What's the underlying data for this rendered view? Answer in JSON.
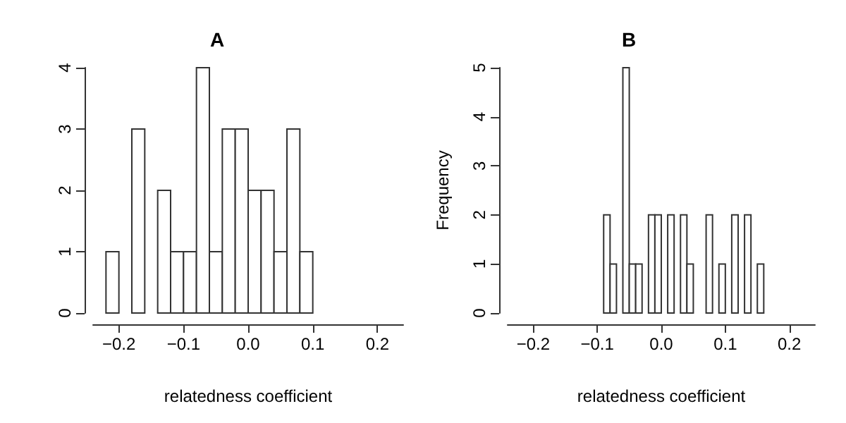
{
  "chart_data": [
    {
      "type": "histogram",
      "title": "A",
      "xlabel": "relatedness coefficient",
      "bins": [
        -0.22,
        -0.2,
        -0.18,
        -0.16,
        -0.14,
        -0.12,
        -0.1,
        -0.08,
        -0.06,
        -0.04,
        -0.02,
        0,
        0.02,
        0.04,
        0.06,
        0.08,
        0.1
      ],
      "values": [
        1,
        0,
        3,
        0,
        2,
        1,
        1,
        4,
        1,
        3,
        3,
        2,
        2,
        1,
        3,
        1
      ],
      "color": "#ffffff",
      "xlim": [
        -0.24,
        0.24
      ],
      "xticks": [
        {
          "value": -0.2,
          "label": "−0.2"
        },
        {
          "value": -0.1,
          "label": "−0.1"
        },
        {
          "value": 0,
          "label": "0.0"
        },
        {
          "value": 0.1,
          "label": "0.1"
        },
        {
          "value": 0.2,
          "label": "0.2"
        }
      ],
      "ylim": [
        0,
        4
      ],
      "yticks": [
        0,
        1,
        2,
        3,
        4
      ],
      "grid": false
    },
    {
      "type": "histogram",
      "title": "B",
      "xlabel": "relatedness coefficient",
      "ylabel": "Frequency",
      "bins": [
        -0.09,
        -0.08,
        -0.07,
        -0.06,
        -0.05,
        -0.04,
        -0.03,
        -0.02,
        -0.01,
        0,
        0.01,
        0.02,
        0.03,
        0.04,
        0.05,
        0.06,
        0.07,
        0.08,
        0.09,
        0.1,
        0.11,
        0.12,
        0.13,
        0.14,
        0.15,
        0.16
      ],
      "values": [
        2,
        1,
        0,
        5,
        1,
        1,
        0,
        2,
        2,
        0,
        2,
        0,
        2,
        1,
        0,
        0,
        2,
        0,
        1,
        0,
        2,
        0,
        2,
        0,
        1
      ],
      "color": "#ffffff",
      "xlim": [
        -0.24,
        0.24
      ],
      "xticks": [
        {
          "value": -0.2,
          "label": "−0.2"
        },
        {
          "value": -0.1,
          "label": "−0.1"
        },
        {
          "value": 0,
          "label": "0.0"
        },
        {
          "value": 0.1,
          "label": "0.1"
        },
        {
          "value": 0.2,
          "label": "0.2"
        }
      ],
      "ylim": [
        0,
        5
      ],
      "yticks": [
        0,
        1,
        2,
        3,
        4,
        5
      ],
      "grid": false
    }
  ]
}
